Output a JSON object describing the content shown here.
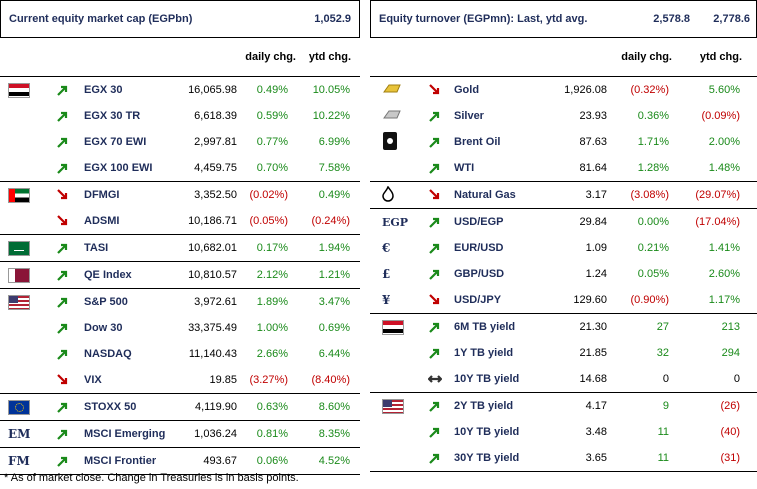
{
  "left": {
    "title": "Current equity market cap (EGPbn)",
    "value": "1,052.9",
    "col_daily": "daily chg.",
    "col_ytd": "ytd chg.",
    "rows": [
      {
        "name": "EGX 30",
        "level": "16,065.98",
        "daily": "0.49%",
        "ytd": "10.05%",
        "dir": "up",
        "dcls": "pos",
        "ycls": "pos",
        "icon": "egypt-flag-icon",
        "group_start": true
      },
      {
        "name": "EGX 30 TR",
        "level": "6,618.39",
        "daily": "0.59%",
        "ytd": "10.22%",
        "dir": "up",
        "dcls": "pos",
        "ycls": "pos",
        "icon": "",
        "group_start": false
      },
      {
        "name": "EGX 70 EWI",
        "level": "2,997.81",
        "daily": "0.77%",
        "ytd": "6.99%",
        "dir": "up",
        "dcls": "pos",
        "ycls": "pos",
        "icon": "",
        "group_start": false
      },
      {
        "name": "EGX 100 EWI",
        "level": "4,459.75",
        "daily": "0.70%",
        "ytd": "7.58%",
        "dir": "up",
        "dcls": "pos",
        "ycls": "pos",
        "icon": "",
        "group_start": false
      },
      {
        "name": "DFMGI",
        "level": "3,352.50",
        "daily": "(0.02%)",
        "ytd": "0.49%",
        "dir": "down",
        "dcls": "neg",
        "ycls": "pos",
        "icon": "uae-flag-icon",
        "group_start": true
      },
      {
        "name": "ADSMI",
        "level": "10,186.71",
        "daily": "(0.05%)",
        "ytd": "(0.24%)",
        "dir": "down",
        "dcls": "neg",
        "ycls": "neg",
        "icon": "",
        "group_start": false
      },
      {
        "name": "TASI",
        "level": "10,682.01",
        "daily": "0.17%",
        "ytd": "1.94%",
        "dir": "up",
        "dcls": "pos",
        "ycls": "pos",
        "icon": "saudi-flag-icon",
        "group_start": true
      },
      {
        "name": "QE Index",
        "level": "10,810.57",
        "daily": "2.12%",
        "ytd": "1.21%",
        "dir": "up",
        "dcls": "pos",
        "ycls": "pos",
        "icon": "qatar-flag-icon",
        "group_start": true
      },
      {
        "name": "S&P 500",
        "level": "3,972.61",
        "daily": "1.89%",
        "ytd": "3.47%",
        "dir": "up",
        "dcls": "pos",
        "ycls": "pos",
        "icon": "us-flag-icon",
        "group_start": true
      },
      {
        "name": "Dow 30",
        "level": "33,375.49",
        "daily": "1.00%",
        "ytd": "0.69%",
        "dir": "up",
        "dcls": "pos",
        "ycls": "pos",
        "icon": "",
        "group_start": false
      },
      {
        "name": "NASDAQ",
        "level": "11,140.43",
        "daily": "2.66%",
        "ytd": "6.44%",
        "dir": "up",
        "dcls": "pos",
        "ycls": "pos",
        "icon": "",
        "group_start": false
      },
      {
        "name": "VIX",
        "level": "19.85",
        "daily": "(3.27%)",
        "ytd": "(8.40%)",
        "dir": "down",
        "dcls": "neg",
        "ycls": "neg",
        "icon": "",
        "group_start": false
      },
      {
        "name": "STOXX 50",
        "level": "4,119.90",
        "daily": "0.63%",
        "ytd": "8.60%",
        "dir": "up",
        "dcls": "pos",
        "ycls": "pos",
        "icon": "eu-flag-icon",
        "group_start": true
      },
      {
        "name": "MSCI Emerging",
        "level": "1,036.24",
        "daily": "0.81%",
        "ytd": "8.35%",
        "dir": "up",
        "dcls": "pos",
        "ycls": "pos",
        "icon": "em-text-icon",
        "icon_text": "EM",
        "group_start": true
      },
      {
        "name": "MSCI Frontier",
        "level": "493.67",
        "daily": "0.06%",
        "ytd": "4.52%",
        "dir": "up",
        "dcls": "pos",
        "ycls": "pos",
        "icon": "fm-text-icon",
        "icon_text": "FM",
        "group_start": true
      }
    ]
  },
  "right": {
    "title": "Equity turnover (EGPmn): Last, ytd avg.",
    "value1": "2,578.8",
    "value2": "2,778.6",
    "col_daily": "daily chg.",
    "col_ytd": "ytd chg.",
    "rows": [
      {
        "name": "Gold",
        "level": "1,926.08",
        "daily": "(0.32%)",
        "ytd": "5.60%",
        "dir": "down",
        "dcls": "neg",
        "ycls": "pos",
        "icon": "gold-bar-icon",
        "group_start": true
      },
      {
        "name": "Silver",
        "level": "23.93",
        "daily": "0.36%",
        "ytd": "(0.09%)",
        "dir": "up",
        "dcls": "pos",
        "ycls": "neg",
        "icon": "silver-bar-icon",
        "group_start": false
      },
      {
        "name": "Brent Oil",
        "level": "87.63",
        "daily": "1.71%",
        "ytd": "2.00%",
        "dir": "up",
        "dcls": "pos",
        "ycls": "pos",
        "icon": "oil-barrel-icon",
        "group_start": false
      },
      {
        "name": "WTI",
        "level": "81.64",
        "daily": "1.28%",
        "ytd": "1.48%",
        "dir": "up",
        "dcls": "pos",
        "ycls": "pos",
        "icon": "",
        "group_start": false
      },
      {
        "name": "Natural Gas",
        "level": "3.17",
        "daily": "(3.08%)",
        "ytd": "(29.07%)",
        "dir": "down",
        "dcls": "neg",
        "ycls": "neg",
        "icon": "flame-icon",
        "group_start": true
      },
      {
        "name": "USD/EGP",
        "level": "29.84",
        "daily": "0.00%",
        "ytd": "(17.04%)",
        "dir": "up",
        "dcls": "pos",
        "ycls": "neg",
        "icon": "egp-text-icon",
        "icon_text": "EGP",
        "group_start": true
      },
      {
        "name": "EUR/USD",
        "level": "1.09",
        "daily": "0.21%",
        "ytd": "1.41%",
        "dir": "up",
        "dcls": "pos",
        "ycls": "pos",
        "icon": "euro-icon",
        "icon_text": "€",
        "group_start": false
      },
      {
        "name": "GBP/USD",
        "level": "1.24",
        "daily": "0.05%",
        "ytd": "2.60%",
        "dir": "up",
        "dcls": "pos",
        "ycls": "pos",
        "icon": "pound-icon",
        "icon_text": "£",
        "group_start": false
      },
      {
        "name": "USD/JPY",
        "level": "129.60",
        "daily": "(0.90%)",
        "ytd": "1.17%",
        "dir": "down",
        "dcls": "neg",
        "ycls": "pos",
        "icon": "yen-icon",
        "icon_text": "¥",
        "group_start": false
      },
      {
        "name": "6M TB yield",
        "level": "21.30",
        "daily": "27",
        "ytd": "213",
        "dir": "up",
        "dcls": "pos",
        "ycls": "pos",
        "icon": "egypt-flag-icon",
        "group_start": true
      },
      {
        "name": "1Y TB yield",
        "level": "21.85",
        "daily": "32",
        "ytd": "294",
        "dir": "up",
        "dcls": "pos",
        "ycls": "pos",
        "icon": "",
        "group_start": false
      },
      {
        "name": "10Y TB yield",
        "level": "14.68",
        "daily": "0",
        "ytd": "0",
        "dir": "flat",
        "dcls": "neu",
        "ycls": "neu",
        "icon": "",
        "group_start": false
      },
      {
        "name": "2Y TB yield",
        "level": "4.17",
        "daily": "9",
        "ytd": "(26)",
        "dir": "up",
        "dcls": "pos",
        "ycls": "neg",
        "icon": "us-flag-icon",
        "group_start": true
      },
      {
        "name": "10Y TB yield",
        "level": "3.48",
        "daily": "11",
        "ytd": "(40)",
        "dir": "up",
        "dcls": "pos",
        "ycls": "neg",
        "icon": "",
        "group_start": false
      },
      {
        "name": "30Y TB yield",
        "level": "3.65",
        "daily": "11",
        "ytd": "(31)",
        "dir": "up",
        "dcls": "pos",
        "ycls": "neg",
        "icon": "",
        "group_start": false
      }
    ]
  },
  "footnote": "* As of market close. Change in Treasuries is in basis points.",
  "colors": {
    "up": "#1a8a1a",
    "down": "#c00000",
    "heading": "#1f2d5a"
  }
}
